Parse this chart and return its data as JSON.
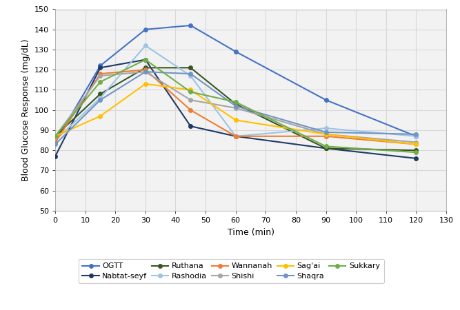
{
  "time_points": [
    0,
    15,
    30,
    45,
    60,
    90,
    120
  ],
  "series": {
    "OGTT": {
      "values": [
        84,
        122,
        140,
        142,
        129,
        105,
        87
      ],
      "color": "#4472C4",
      "marker": "o",
      "linewidth": 1.5,
      "markersize": 4
    },
    "Nabtat-seyf": {
      "values": [
        77,
        121,
        125,
        92,
        87,
        81,
        76
      ],
      "color": "#1F3864",
      "marker": "o",
      "linewidth": 1.5,
      "markersize": 4
    },
    "Ruthana": {
      "values": [
        87,
        108,
        121,
        121,
        103,
        81,
        80
      ],
      "color": "#375623",
      "marker": "o",
      "linewidth": 1.5,
      "markersize": 4
    },
    "Rashodia": {
      "values": [
        85,
        106,
        132,
        117,
        87,
        91,
        87
      ],
      "color": "#9DC3E6",
      "marker": "o",
      "linewidth": 1.5,
      "markersize": 4
    },
    "Wannanah": {
      "values": [
        84,
        118,
        120,
        100,
        87,
        87,
        83
      ],
      "color": "#ED7D31",
      "marker": "o",
      "linewidth": 1.5,
      "markersize": 4
    },
    "Shishi": {
      "values": [
        87,
        117,
        119,
        105,
        101,
        88,
        84
      ],
      "color": "#A5A5A5",
      "marker": "o",
      "linewidth": 1.5,
      "markersize": 4
    },
    "Sag'ai": {
      "values": [
        87,
        97,
        113,
        110,
        95,
        88,
        83
      ],
      "color": "#FFC000",
      "marker": "o",
      "linewidth": 1.5,
      "markersize": 4
    },
    "Shaqra": {
      "values": [
        83,
        105,
        119,
        118,
        102,
        89,
        88
      ],
      "color": "#7094C4",
      "marker": "o",
      "linewidth": 1.5,
      "markersize": 4
    },
    "Sukkary": {
      "values": [
        87,
        114,
        125,
        109,
        104,
        82,
        79
      ],
      "color": "#70AD47",
      "marker": "o",
      "linewidth": 1.5,
      "markersize": 4
    }
  },
  "xlabel": "Time (min)",
  "ylabel": "Blood Glucose Response (mg/dL)",
  "xlim": [
    0,
    130
  ],
  "ylim": [
    50,
    150
  ],
  "xticks": [
    0,
    10,
    20,
    30,
    40,
    50,
    60,
    70,
    80,
    90,
    100,
    110,
    120,
    130
  ],
  "yticks": [
    50,
    60,
    70,
    80,
    90,
    100,
    110,
    120,
    130,
    140,
    150
  ],
  "grid_color": "#D9D9D9",
  "plot_bg_color": "#F2F2F2",
  "background_color": "#FFFFFF",
  "legend_row1": [
    "OGTT",
    "Nabtat-seyf",
    "Ruthana",
    "Rashodia",
    "Wannanah"
  ],
  "legend_row2": [
    "Shishi",
    "Sag'ai",
    "Shaqra",
    "Sukkary"
  ]
}
